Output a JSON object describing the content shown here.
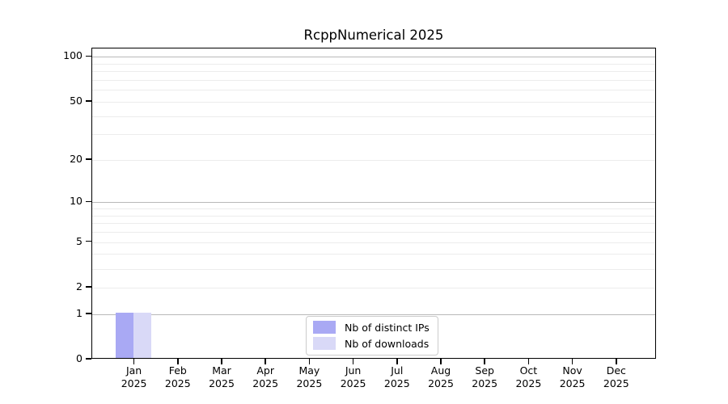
{
  "chart_data": {
    "type": "bar",
    "title": "RcppNumerical 2025",
    "categories": [
      {
        "month": "Jan",
        "year": "2025"
      },
      {
        "month": "Feb",
        "year": "2025"
      },
      {
        "month": "Mar",
        "year": "2025"
      },
      {
        "month": "Apr",
        "year": "2025"
      },
      {
        "month": "May",
        "year": "2025"
      },
      {
        "month": "Jun",
        "year": "2025"
      },
      {
        "month": "Jul",
        "year": "2025"
      },
      {
        "month": "Aug",
        "year": "2025"
      },
      {
        "month": "Sep",
        "year": "2025"
      },
      {
        "month": "Oct",
        "year": "2025"
      },
      {
        "month": "Nov",
        "year": "2025"
      },
      {
        "month": "Dec",
        "year": "2025"
      }
    ],
    "series": [
      {
        "name": "Nb of distinct IPs",
        "color": "#a9a9f4",
        "values": [
          1,
          0,
          0,
          0,
          0,
          0,
          0,
          0,
          0,
          0,
          0,
          0
        ]
      },
      {
        "name": "Nb of downloads",
        "color": "#d9d9f7",
        "values": [
          1,
          0,
          0,
          0,
          0,
          0,
          0,
          0,
          0,
          0,
          0,
          0
        ]
      }
    ],
    "y_axis": {
      "scale": "log1p",
      "tick_values": [
        0,
        1,
        2,
        5,
        10,
        20,
        50,
        100
      ],
      "major_grid_values": [
        1,
        10,
        100
      ],
      "minor_grid_values": [
        2,
        3,
        4,
        5,
        6,
        7,
        8,
        9,
        20,
        30,
        40,
        50,
        60,
        70,
        80,
        90
      ],
      "range_max": 100
    },
    "legend": {
      "position": "bottom-center",
      "entries": [
        "Nb of distinct IPs",
        "Nb of downloads"
      ]
    },
    "colors": {
      "background": "#ffffff",
      "spine": "#000000",
      "text": "#000000",
      "major_grid": "#b9b9b9",
      "minor_grid": "#ececec",
      "legend_border": "#cccccc"
    }
  }
}
